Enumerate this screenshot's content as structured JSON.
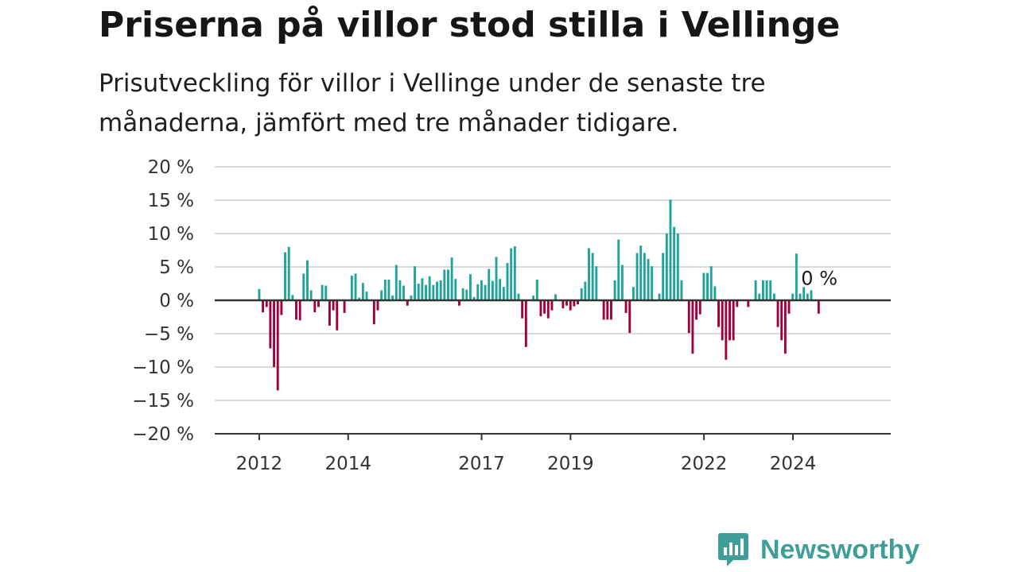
{
  "title": "Priserna på villor stod stilla i Vellinge",
  "subtitle": "Prisutveckling för villor i Vellinge under de senaste tre månaderna, jämfört med tre månader tidigare.",
  "brand": {
    "name": "Newsworthy"
  },
  "colors": {
    "positive": "#20a39a",
    "negative": "#a0003c",
    "grid": "#d9d9d9",
    "axis": "#333333"
  },
  "chart_data": {
    "type": "bar",
    "ylim": [
      -20,
      20
    ],
    "yticks": [
      20,
      15,
      10,
      5,
      0,
      -5,
      -10,
      -15,
      -20
    ],
    "ytick_labels": [
      "20 %",
      "15 %",
      "10 %",
      "5 %",
      "0 %",
      "−5 %",
      "−10 %",
      "−15 %",
      "−20 %"
    ],
    "x_start": 2012.0,
    "x_step": 0.0833,
    "xlim": [
      2011.0,
      2026.2
    ],
    "xticks": [
      2012,
      2014,
      2017,
      2019,
      2022,
      2024
    ],
    "xtick_labels": [
      "2012",
      "2014",
      "2017",
      "2019",
      "2022",
      "2024"
    ],
    "grid": true,
    "annotation": "0 %",
    "values": [
      1.7,
      -1.8,
      -1,
      -7.2,
      -10,
      -13.5,
      -2.2,
      7.2,
      8,
      0.8,
      -2.9,
      -3,
      4,
      6,
      1.5,
      -1.8,
      -1,
      2.3,
      2.2,
      -3.8,
      -1.5,
      -4.5,
      0,
      -1.9,
      0,
      3.7,
      4,
      0.4,
      2.6,
      1.3,
      0,
      -3.6,
      -1.5,
      1.5,
      3.1,
      3.1,
      0.7,
      5.3,
      3,
      2.2,
      -0.8,
      0.7,
      5.1,
      2.5,
      3.3,
      2.3,
      3.6,
      2.3,
      2.8,
      3,
      4.6,
      4.6,
      6.4,
      3.2,
      -0.8,
      1.8,
      1.6,
      3.9,
      0.5,
      2.4,
      3,
      2.3,
      4.7,
      2.9,
      6.5,
      3.2,
      2,
      5.6,
      7.8,
      8.1,
      1,
      -2.7,
      -7,
      0,
      0.7,
      3.1,
      -2.4,
      -2,
      -2.7,
      -1.5,
      0.9,
      0,
      -1.2,
      -0.8,
      -1.5,
      -0.9,
      -0.6,
      1.8,
      2.8,
      7.8,
      7.1,
      5.1,
      0,
      -2.9,
      -2.9,
      -2.9,
      3,
      9.1,
      5.3,
      -1.9,
      -4.9,
      2,
      7.1,
      8.2,
      7.1,
      6.2,
      5.1,
      0,
      1,
      7.1,
      10,
      15.1,
      11,
      10,
      3,
      0,
      -4.9,
      -8,
      -2.9,
      -2.1,
      4.1,
      4.1,
      5.1,
      2.1,
      -4,
      -6,
      -8.9,
      -6,
      -6,
      -1,
      0,
      0,
      -1,
      0,
      3,
      1,
      3,
      3,
      3,
      1,
      -4,
      -6,
      -8,
      -2,
      1,
      7,
      1,
      2,
      1,
      1.5,
      0,
      -2
    ]
  }
}
